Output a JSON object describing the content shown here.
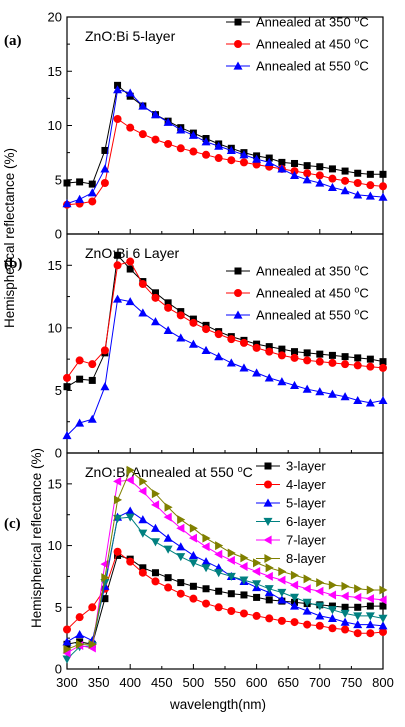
{
  "figure": {
    "ylabel": "Hemispherical reflectance (%)",
    "xlabel": "wavelength(nm)"
  },
  "chart_data": [
    {
      "type": "line",
      "panel_label": "(a)",
      "title": "ZnO:Bi 5-layer",
      "xlabel": "",
      "ylabel": "Hemispherical reflectance (%)",
      "xlim": [
        300,
        800
      ],
      "ylim": [
        0,
        20
      ],
      "yticks": [
        0,
        5,
        10,
        15,
        20
      ],
      "x": [
        300,
        320,
        340,
        360,
        380,
        400,
        420,
        440,
        460,
        480,
        500,
        520,
        540,
        560,
        580,
        600,
        620,
        640,
        660,
        680,
        700,
        720,
        740,
        760,
        780,
        800
      ],
      "series": [
        {
          "name": "Annealed at 350 °C",
          "color": "#000000",
          "marker": "square",
          "values": [
            4.7,
            4.8,
            4.6,
            7.7,
            13.7,
            12.7,
            11.8,
            11.0,
            10.4,
            9.8,
            9.3,
            8.8,
            8.3,
            7.9,
            7.5,
            7.2,
            7.0,
            6.6,
            6.5,
            6.3,
            6.2,
            6.0,
            5.8,
            5.6,
            5.5,
            5.5
          ]
        },
        {
          "name": "Annealed at 450 °C",
          "color": "#ff0000",
          "marker": "circle",
          "values": [
            2.7,
            2.8,
            3.0,
            4.7,
            10.6,
            9.8,
            9.2,
            8.7,
            8.3,
            7.9,
            7.6,
            7.3,
            7.0,
            6.8,
            6.6,
            6.4,
            6.2,
            6.0,
            5.8,
            5.6,
            5.4,
            5.1,
            4.9,
            4.7,
            4.5,
            4.4
          ]
        },
        {
          "name": "Annealed at 550 °C",
          "color": "#0000ff",
          "marker": "triangle",
          "values": [
            2.8,
            3.2,
            3.8,
            6.0,
            13.3,
            13.0,
            11.8,
            11.0,
            10.3,
            9.6,
            9.1,
            8.5,
            8.1,
            7.7,
            7.3,
            6.9,
            6.6,
            6.0,
            5.4,
            5.0,
            4.7,
            4.3,
            4.0,
            3.6,
            3.5,
            3.4
          ]
        }
      ],
      "legend": "top-right",
      "grid": false
    },
    {
      "type": "line",
      "panel_label": "(b)",
      "title": "ZnO:Bi 6 Layer",
      "xlabel": "",
      "ylabel": "Hemispherical reflectance (%)",
      "xlim": [
        300,
        800
      ],
      "ylim": [
        0,
        17.5
      ],
      "yticks": [
        0,
        5,
        10,
        15
      ],
      "x": [
        300,
        320,
        340,
        360,
        380,
        400,
        420,
        440,
        460,
        480,
        500,
        520,
        540,
        560,
        580,
        600,
        620,
        640,
        660,
        680,
        700,
        720,
        740,
        760,
        780,
        800
      ],
      "series": [
        {
          "name": "Annealed at 350 °C",
          "color": "#000000",
          "marker": "square",
          "values": [
            5.3,
            5.9,
            5.8,
            8.0,
            15.8,
            14.7,
            13.7,
            12.8,
            12.0,
            11.3,
            10.7,
            10.2,
            9.7,
            9.3,
            9.0,
            8.7,
            8.5,
            8.3,
            8.1,
            8.0,
            7.9,
            7.8,
            7.7,
            7.6,
            7.5,
            7.3
          ]
        },
        {
          "name": "Annealed at 450 °C",
          "color": "#ff0000",
          "marker": "circle",
          "values": [
            6.0,
            7.4,
            7.1,
            8.2,
            15.0,
            15.3,
            13.5,
            12.4,
            11.6,
            11.0,
            10.4,
            9.9,
            9.5,
            9.1,
            8.8,
            8.4,
            8.1,
            7.8,
            7.6,
            7.4,
            7.3,
            7.2,
            7.1,
            7.0,
            6.9,
            6.8
          ]
        },
        {
          "name": "Annealed at 550 °C",
          "color": "#0000ff",
          "marker": "triangle",
          "values": [
            1.4,
            2.4,
            2.7,
            5.3,
            12.3,
            12.1,
            11.2,
            10.5,
            9.8,
            9.2,
            8.7,
            8.2,
            7.7,
            7.2,
            6.8,
            6.4,
            6.0,
            5.7,
            5.4,
            5.1,
            4.9,
            4.7,
            4.5,
            4.2,
            4.0,
            4.2
          ]
        }
      ],
      "legend": "top-right",
      "grid": false
    },
    {
      "type": "line",
      "panel_label": "(c)",
      "title": "ZnO:Bi Annealed at 550 °C",
      "xlabel": "wavelength(nm)",
      "ylabel": "Hemispherical reflectance (%)",
      "xlim": [
        300,
        800
      ],
      "ylim": [
        0,
        17.5
      ],
      "yticks": [
        0,
        5,
        10,
        15
      ],
      "x": [
        300,
        320,
        340,
        360,
        380,
        400,
        420,
        440,
        460,
        480,
        500,
        520,
        540,
        560,
        580,
        600,
        620,
        640,
        660,
        680,
        700,
        720,
        740,
        760,
        780,
        800
      ],
      "series": [
        {
          "name": "3-layer",
          "color": "#000000",
          "marker": "square",
          "values": [
            2.0,
            2.2,
            2.0,
            5.7,
            9.2,
            8.9,
            8.2,
            7.8,
            7.4,
            7.0,
            6.7,
            6.5,
            6.3,
            6.1,
            6.0,
            5.8,
            5.6,
            5.5,
            5.4,
            5.3,
            5.2,
            5.1,
            5.0,
            5.0,
            5.1,
            5.1
          ]
        },
        {
          "name": "4-layer",
          "color": "#ff0000",
          "marker": "circle",
          "values": [
            3.2,
            4.2,
            5.0,
            6.5,
            9.5,
            8.7,
            7.8,
            7.1,
            6.6,
            6.1,
            5.7,
            5.3,
            5.0,
            4.7,
            4.5,
            4.3,
            4.1,
            3.9,
            3.8,
            3.6,
            3.5,
            3.3,
            3.2,
            2.9,
            2.9,
            3.0
          ]
        },
        {
          "name": "5-layer",
          "color": "#0000ff",
          "marker": "triangle",
          "values": [
            2.2,
            2.8,
            2.3,
            6.7,
            12.3,
            12.8,
            12.1,
            11.4,
            10.6,
            9.9,
            9.2,
            8.7,
            8.2,
            7.5,
            7.1,
            6.6,
            6.2,
            5.6,
            5.1,
            4.7,
            4.3,
            4.1,
            3.8,
            3.6,
            3.6,
            3.5
          ]
        },
        {
          "name": "6-layer",
          "color": "#008080",
          "marker": "triangle-down",
          "values": [
            0.8,
            1.8,
            1.9,
            7.0,
            12.2,
            12.3,
            11.0,
            10.3,
            9.7,
            9.1,
            8.6,
            8.2,
            7.8,
            7.5,
            7.2,
            6.9,
            6.5,
            6.2,
            5.8,
            5.4,
            5.1,
            4.8,
            4.5,
            4.3,
            4.3,
            4.1
          ]
        },
        {
          "name": "7-layer",
          "color": "#ff00ff",
          "marker": "triangle-left",
          "values": [
            1.3,
            1.9,
            1.7,
            8.5,
            15.2,
            15.3,
            14.4,
            13.3,
            12.3,
            11.4,
            10.6,
            9.9,
            9.3,
            8.8,
            8.3,
            7.9,
            7.5,
            7.2,
            6.8,
            6.5,
            6.3,
            6.0,
            5.9,
            5.8,
            5.7,
            5.6
          ]
        },
        {
          "name": "8-layer",
          "color": "#808000",
          "marker": "triangle-right",
          "values": [
            1.6,
            2.0,
            2.0,
            7.4,
            13.7,
            16.1,
            15.2,
            14.2,
            13.1,
            12.1,
            11.4,
            10.6,
            10.0,
            9.4,
            9.0,
            8.6,
            8.2,
            7.9,
            7.6,
            7.3,
            7.0,
            6.8,
            6.7,
            6.5,
            6.4,
            6.4
          ]
        }
      ],
      "legend": "top-right",
      "grid": false
    }
  ]
}
